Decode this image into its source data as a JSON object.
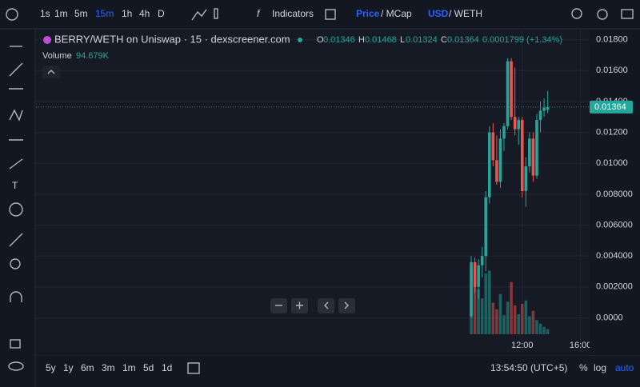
{
  "toolbar": {
    "intervals": [
      "1s",
      "1m",
      "5m",
      "15m",
      "1h",
      "4h",
      "D"
    ],
    "indicators": "Indicators",
    "price": "Price",
    "mcap": "/ MCap",
    "usd": "USD",
    "weth": "/ WETH"
  },
  "bottom_bar": {
    "ranges": [
      "5y",
      "1y",
      "6m",
      "3m",
      "1m",
      "5d",
      "1d"
    ],
    "clock": "13:54:50 (UTC+5)",
    "percent": "%",
    "log": "log",
    "auto": "auto"
  },
  "chart_data": {
    "type": "candlestick",
    "title": "BERRY/WETH on Uniswap · 15 · dexscreener.com",
    "ohlc_letters": [
      "O",
      "H",
      "L",
      "C"
    ],
    "change_label": "0.0001799 (+1.34%)",
    "volume_name": "Volume",
    "last_volume_label": "94.679K",
    "open": [
      0.0001,
      0.0036,
      0.002,
      0.0034,
      0.004,
      0.0078,
      0.012,
      0.0102,
      0.0088,
      0.0116,
      0.0124,
      0.0166,
      0.013,
      0.0122,
      0.0128,
      0.0082,
      0.0098,
      0.0116,
      0.0092,
      0.0128,
      0.0134,
      0.01346
    ],
    "high": [
      0.004,
      0.0039,
      0.0038,
      0.0046,
      0.0082,
      0.0124,
      0.0126,
      0.0118,
      0.0122,
      0.0126,
      0.0168,
      0.0168,
      0.0162,
      0.013,
      0.013,
      0.0104,
      0.012,
      0.012,
      0.0132,
      0.014,
      0.0142,
      0.01468
    ],
    "low": [
      0.0,
      0.0016,
      0.0012,
      0.0026,
      0.003,
      0.0074,
      0.0098,
      0.0086,
      0.0084,
      0.0108,
      0.0122,
      0.0128,
      0.0118,
      0.0112,
      0.0078,
      0.0072,
      0.0094,
      0.0088,
      0.009,
      0.012,
      0.013,
      0.01324
    ],
    "close": [
      0.0036,
      0.002,
      0.0034,
      0.004,
      0.0078,
      0.012,
      0.0102,
      0.0088,
      0.0116,
      0.0124,
      0.0166,
      0.013,
      0.0122,
      0.0128,
      0.0082,
      0.0098,
      0.0116,
      0.0092,
      0.0128,
      0.0134,
      0.0136,
      0.01364
    ],
    "volume": [
      1250,
      980,
      830,
      660,
      1120,
      1170,
      580,
      460,
      740,
      350,
      600,
      960,
      530,
      370,
      560,
      620,
      330,
      430,
      260,
      195,
      135,
      94.679
    ],
    "up_color": "#26a69a",
    "down_color": "#ef5350",
    "xlim": [
      -119.5,
      32.5
    ],
    "xticks": [
      {
        "value": 14,
        "label": "12:00"
      },
      {
        "value": 30,
        "label": "16:00"
      }
    ],
    "ylim": [
      -0.0022,
      0.0186
    ],
    "yticks": [
      {
        "value": 0,
        "label": "0.0000"
      },
      {
        "value": 0.002,
        "label": "0.002000"
      },
      {
        "value": 0.004,
        "label": "0.004000"
      },
      {
        "value": 0.006,
        "label": "0.006000"
      },
      {
        "value": 0.008,
        "label": "0.008000"
      },
      {
        "value": 0.01,
        "label": "0.01000"
      },
      {
        "value": 0.012,
        "label": "0.01200"
      },
      {
        "value": 0.014,
        "label": "0.01400"
      },
      {
        "value": 0.016,
        "label": "0.01600"
      },
      {
        "value": 0.018,
        "label": "0.01800"
      }
    ],
    "grid": true
  }
}
